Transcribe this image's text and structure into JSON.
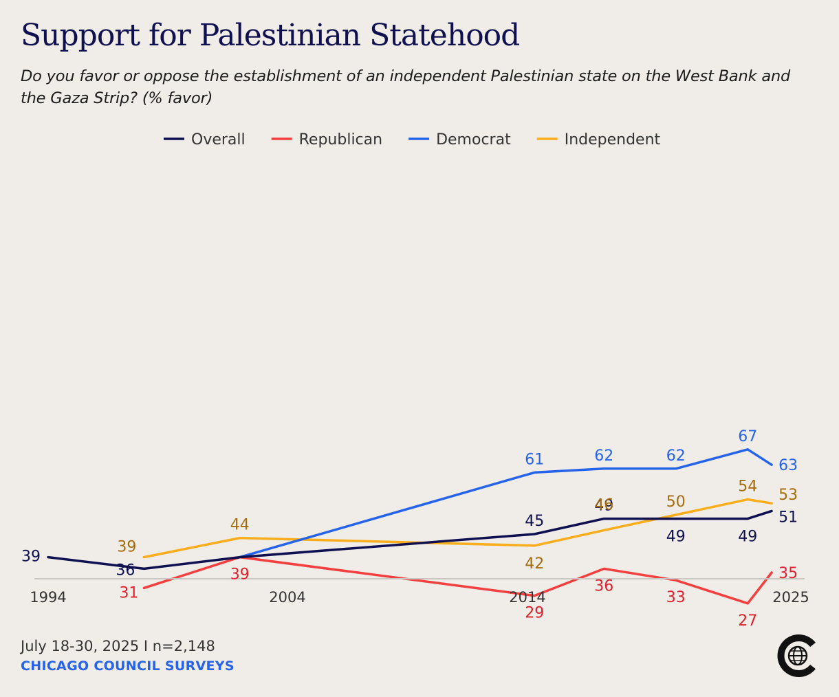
{
  "title": "Support for Palestinian Statehood",
  "subtitle": "Do you favor or oppose the establishment of an independent Palestinian state on the West Bank and the Gaza Strip? (% favor)",
  "footer": {
    "date_sample": "July 18-30, 2025 I n=2,148",
    "source": "CHICAGO COUNCIL SURVEYS"
  },
  "chart_data": {
    "type": "line",
    "title": "Support for Palestinian Statehood",
    "xlabel": "",
    "ylabel": "",
    "x_ticks": [
      "1994",
      "2004",
      "2014",
      "2025"
    ],
    "xlim": [
      1994,
      2025
    ],
    "ylim": [
      0,
      100
    ],
    "grid": false,
    "legend_position": "top-center",
    "series": [
      {
        "name": "Overall",
        "color": "#0f1050",
        "label_color": "#0f1050",
        "points": [
          [
            1994,
            39
          ],
          [
            1998,
            36
          ],
          [
            2002,
            39
          ],
          [
            2014.3,
            45
          ],
          [
            2017.2,
            49
          ],
          [
            2020.2,
            49
          ],
          [
            2023.2,
            49
          ],
          [
            2024.2,
            51
          ]
        ],
        "labels": [
          "39",
          "36",
          "",
          "45",
          "49",
          "49",
          "49",
          "51"
        ]
      },
      {
        "name": "Republican",
        "color": "#f43f3f",
        "label_color": "#e0202c",
        "points": [
          [
            1998,
            31
          ],
          [
            2002,
            39
          ],
          [
            2014.3,
            29
          ],
          [
            2017.2,
            36
          ],
          [
            2020.2,
            33
          ],
          [
            2023.2,
            27
          ],
          [
            2024.2,
            35
          ]
        ],
        "labels": [
          "31",
          "39",
          "29",
          "36",
          "33",
          "27",
          "35"
        ]
      },
      {
        "name": "Democrat",
        "color": "#2563eb",
        "label_color": "#2563eb",
        "points": [
          [
            2002,
            39
          ],
          [
            2014.3,
            61
          ],
          [
            2017.2,
            62
          ],
          [
            2020.2,
            62
          ],
          [
            2023.2,
            67
          ],
          [
            2024.2,
            63
          ]
        ],
        "labels": [
          "",
          "61",
          "62",
          "62",
          "67",
          "63"
        ]
      },
      {
        "name": "Independent",
        "color": "#fbad1c",
        "label_color": "#a66c0c",
        "points": [
          [
            1998,
            39
          ],
          [
            2002,
            44
          ],
          [
            2014.3,
            42
          ],
          [
            2017.2,
            46
          ],
          [
            2020.2,
            50
          ],
          [
            2023.2,
            54
          ],
          [
            2024.2,
            53
          ]
        ],
        "labels": [
          "39",
          "44",
          "42",
          "46",
          "50",
          "54",
          "53"
        ]
      }
    ]
  }
}
